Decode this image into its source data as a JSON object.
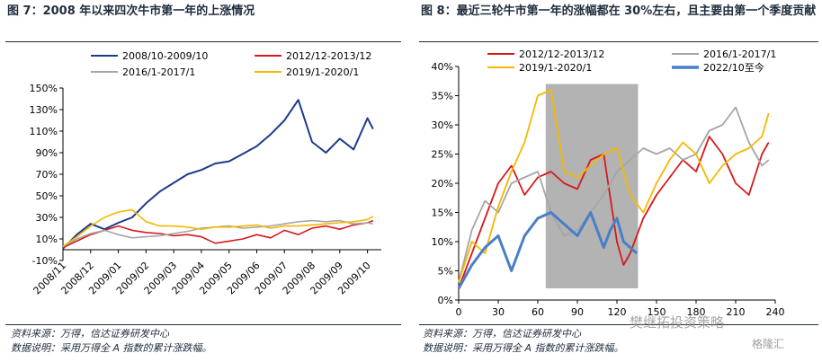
{
  "titles": {
    "left": "图 7：2008 年以来四次牛市第一年的上涨情况",
    "right": "图 8：最近三轮牛市第一年的涨幅都在 30%左右，且主要由第一个季度贡献"
  },
  "footer": {
    "left_source": "资料来源：万得，信达证券研发中心",
    "left_note": "数据说明：采用万得全 A 指数的累计涨跌幅。",
    "right_source": "资料来源：万得，信达证券研发中心",
    "right_note": "数据说明：采用万得全 A 指数的累计涨跌幅。"
  },
  "watermark": "樊继拓投资策略",
  "logo": "格隆汇",
  "chart_data": [
    {
      "type": "line",
      "ylim": [
        -10,
        150
      ],
      "yticks": [
        -10,
        10,
        30,
        50,
        70,
        90,
        110,
        130,
        150
      ],
      "ytick_labels": [
        "-10%",
        "10%",
        "30%",
        "50%",
        "70%",
        "90%",
        "110%",
        "130%",
        "150%"
      ],
      "x_labels": [
        "2008/11",
        "2008/12",
        "2009/01",
        "2009/02",
        "2009/03",
        "2009/04",
        "2009/05",
        "2009/06",
        "2009/07",
        "2009/08",
        "2009/09",
        "2009/10"
      ],
      "legend_position": "top",
      "series": [
        {
          "name": "2008/10-2009/10",
          "color": "#1f3a8a",
          "x": [
            0,
            0.5,
            1,
            1.5,
            2,
            2.5,
            3,
            3.5,
            4,
            4.5,
            5,
            5.5,
            6,
            6.5,
            7,
            7.5,
            8,
            8.5,
            9,
            9.5,
            10,
            10.5,
            11,
            11.2
          ],
          "values": [
            1,
            14,
            24,
            19,
            25,
            30,
            43,
            54,
            62,
            70,
            74,
            80,
            82,
            89,
            96,
            107,
            120,
            139,
            100,
            90,
            103,
            93,
            122,
            112
          ]
        },
        {
          "name": "2012/12-2013/12",
          "color": "#d7191c",
          "x": [
            0,
            0.5,
            1,
            1.5,
            2,
            2.5,
            3,
            3.5,
            4,
            4.5,
            5,
            5.5,
            6,
            6.5,
            7,
            7.5,
            8,
            8.5,
            9,
            9.5,
            10,
            10.5,
            11,
            11.2
          ],
          "values": [
            2,
            8,
            14,
            18,
            22,
            18,
            16,
            15,
            13,
            14,
            12,
            6,
            8,
            10,
            14,
            11,
            18,
            14,
            20,
            22,
            19,
            23,
            25,
            27
          ]
        },
        {
          "name": "2016/1-2017/1",
          "color": "#a6a6a6",
          "x": [
            0,
            0.5,
            1,
            1.5,
            2,
            2.5,
            3,
            3.5,
            4,
            4.5,
            5,
            5.5,
            6,
            6.5,
            7,
            7.5,
            8,
            8.5,
            9,
            9.5,
            10,
            10.5,
            11,
            11.2
          ],
          "values": [
            3,
            10,
            15,
            18,
            14,
            11,
            12,
            13,
            15,
            17,
            20,
            21,
            22,
            20,
            21,
            22,
            24,
            26,
            27,
            26,
            27,
            24,
            25,
            24
          ]
        },
        {
          "name": "2019/1-2020/1",
          "color": "#f5b800",
          "x": [
            0,
            0.5,
            1,
            1.5,
            2,
            2.5,
            3,
            3.5,
            4,
            4.5,
            5,
            5.5,
            6,
            6.5,
            7,
            7.5,
            8,
            8.5,
            9,
            9.5,
            10,
            10.5,
            11,
            11.2
          ],
          "values": [
            3,
            12,
            22,
            30,
            35,
            37,
            26,
            22,
            22,
            21,
            19,
            21,
            21,
            22,
            23,
            20,
            22,
            22,
            23,
            24,
            25,
            26,
            28,
            31
          ]
        }
      ]
    },
    {
      "type": "line",
      "xlim": [
        0,
        240
      ],
      "ylim": [
        0,
        40
      ],
      "xticks": [
        0,
        30,
        60,
        90,
        120,
        150,
        180,
        210,
        240
      ],
      "yticks": [
        0,
        5,
        10,
        15,
        20,
        25,
        30,
        35,
        40
      ],
      "ytick_labels": [
        "0%",
        "5%",
        "10%",
        "15%",
        "20%",
        "25%",
        "30%",
        "35%",
        "40%"
      ],
      "shaded_region": [
        66,
        136
      ],
      "legend_position": "top",
      "series": [
        {
          "name": "2012/12-2013/12",
          "color": "#d7191c",
          "x": [
            0,
            10,
            20,
            30,
            40,
            50,
            60,
            70,
            80,
            90,
            100,
            110,
            120,
            125,
            130,
            140,
            150,
            160,
            170,
            180,
            190,
            200,
            210,
            220,
            230,
            235
          ],
          "values": [
            2,
            8,
            14,
            20,
            23,
            18,
            21,
            22,
            20,
            19,
            24,
            25,
            10,
            6,
            8,
            14,
            18,
            21,
            24,
            22,
            28,
            25,
            20,
            18,
            25,
            27
          ]
        },
        {
          "name": "2016/1-2017/1",
          "color": "#a6a6a6",
          "x": [
            0,
            10,
            20,
            30,
            40,
            50,
            60,
            70,
            80,
            90,
            100,
            110,
            120,
            130,
            140,
            150,
            160,
            170,
            180,
            190,
            200,
            210,
            220,
            230,
            235
          ],
          "values": [
            3,
            12,
            17,
            15,
            20,
            21,
            22,
            15,
            11,
            12,
            15,
            18,
            22,
            24,
            26,
            25,
            26,
            24,
            25,
            29,
            30,
            33,
            27,
            23,
            24
          ]
        },
        {
          "name": "2019/1-2020/1",
          "color": "#f5b800",
          "x": [
            0,
            10,
            20,
            30,
            40,
            50,
            60,
            70,
            80,
            90,
            100,
            110,
            120,
            130,
            140,
            150,
            160,
            170,
            180,
            190,
            200,
            210,
            220,
            230,
            235
          ],
          "values": [
            3,
            10,
            8,
            16,
            22,
            27,
            35,
            36,
            22,
            21,
            23,
            25,
            26,
            18,
            15,
            20,
            24,
            27,
            25,
            20,
            23,
            25,
            26,
            28,
            32
          ]
        },
        {
          "name": "2022/10至今",
          "color": "#4a7ec7",
          "x": [
            0,
            10,
            20,
            30,
            40,
            50,
            60,
            70,
            80,
            90,
            100,
            105,
            110,
            115,
            120,
            125,
            130,
            135
          ],
          "values": [
            2,
            6,
            9,
            11,
            5,
            11,
            14,
            15,
            13,
            11,
            15,
            12,
            9,
            12,
            14,
            10,
            9,
            8
          ]
        }
      ]
    }
  ]
}
